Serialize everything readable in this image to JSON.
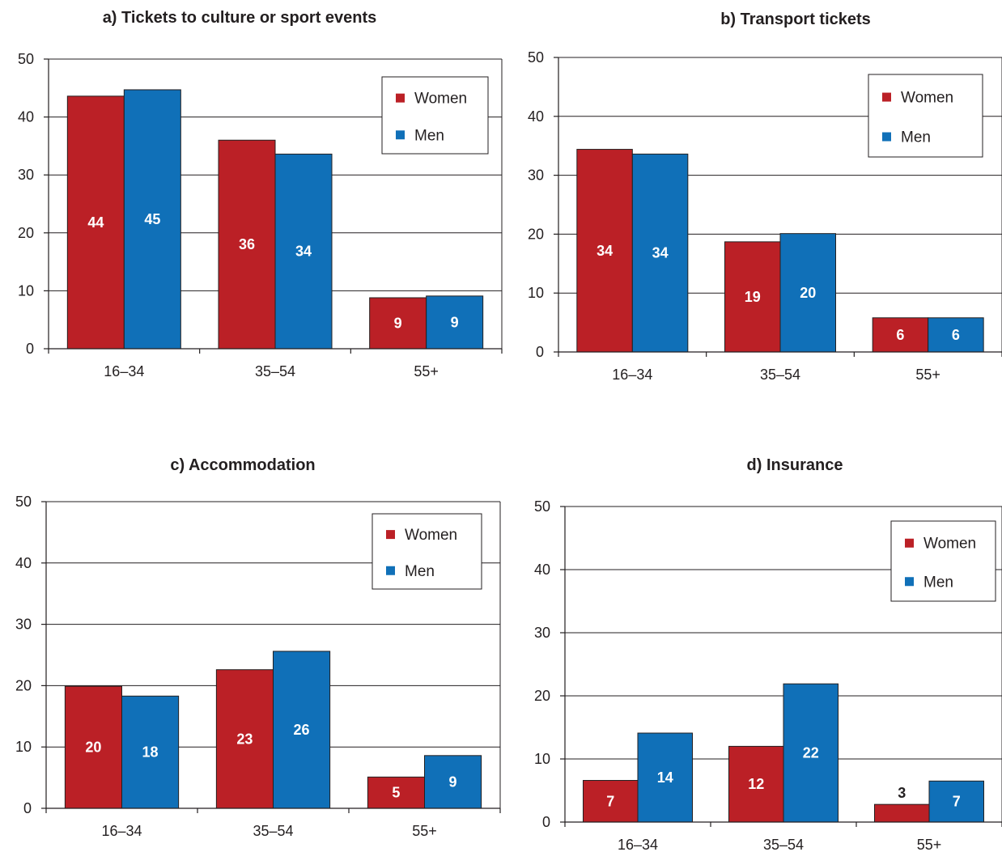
{
  "colors": {
    "women": "#bb2026",
    "men": "#1070b8",
    "axis": "#231f20",
    "grid": "#231f20"
  },
  "chart_data": [
    {
      "type": "bar",
      "title": "a) Tickets to culture or sport events",
      "categories": [
        "16–34",
        "35–54",
        "55+"
      ],
      "ylim": [
        0,
        50
      ],
      "yticks": [
        0,
        10,
        20,
        30,
        40,
        50
      ],
      "grid": true,
      "legend": "top-right",
      "series": [
        {
          "name": "Women",
          "values": [
            43.6,
            36.0,
            8.8
          ],
          "labels": [
            "44",
            "36",
            "9"
          ]
        },
        {
          "name": "Men",
          "values": [
            44.7,
            33.6,
            9.1
          ],
          "labels": [
            "45",
            "34",
            "9"
          ]
        }
      ]
    },
    {
      "type": "bar",
      "title": "b) Transport tickets",
      "categories": [
        "16–34",
        "35–54",
        "55+"
      ],
      "ylim": [
        0,
        50
      ],
      "yticks": [
        0,
        10,
        20,
        30,
        40,
        50
      ],
      "grid": true,
      "legend": "top-right",
      "series": [
        {
          "name": "Women",
          "values": [
            34.4,
            18.7,
            5.8
          ],
          "labels": [
            "34",
            "19",
            "6"
          ]
        },
        {
          "name": "Men",
          "values": [
            33.6,
            20.1,
            5.8
          ],
          "labels": [
            "34",
            "20",
            "6"
          ]
        }
      ]
    },
    {
      "type": "bar",
      "title": "c)  Accommodation",
      "categories": [
        "16–34",
        "35–54",
        "55+"
      ],
      "ylim": [
        0,
        50
      ],
      "yticks": [
        0,
        10,
        20,
        30,
        40,
        50
      ],
      "grid": true,
      "legend": "top-right",
      "series": [
        {
          "name": "Women",
          "values": [
            19.9,
            22.6,
            5.1
          ],
          "labels": [
            "20",
            "23",
            "5"
          ]
        },
        {
          "name": "Men",
          "values": [
            18.3,
            25.6,
            8.6
          ],
          "labels": [
            "18",
            "26",
            "9"
          ]
        }
      ]
    },
    {
      "type": "bar",
      "title": "d) Insurance",
      "categories": [
        "16–34",
        "35–54",
        "55+"
      ],
      "ylim": [
        0,
        50
      ],
      "yticks": [
        0,
        10,
        20,
        30,
        40,
        50
      ],
      "grid": true,
      "legend": "top-right",
      "series": [
        {
          "name": "Women",
          "values": [
            6.6,
            12.0,
            2.8
          ],
          "labels": [
            "7",
            "12",
            "3"
          ]
        },
        {
          "name": "Men",
          "values": [
            14.1,
            21.9,
            6.5
          ],
          "labels": [
            "14",
            "22",
            "7"
          ]
        }
      ]
    }
  ]
}
